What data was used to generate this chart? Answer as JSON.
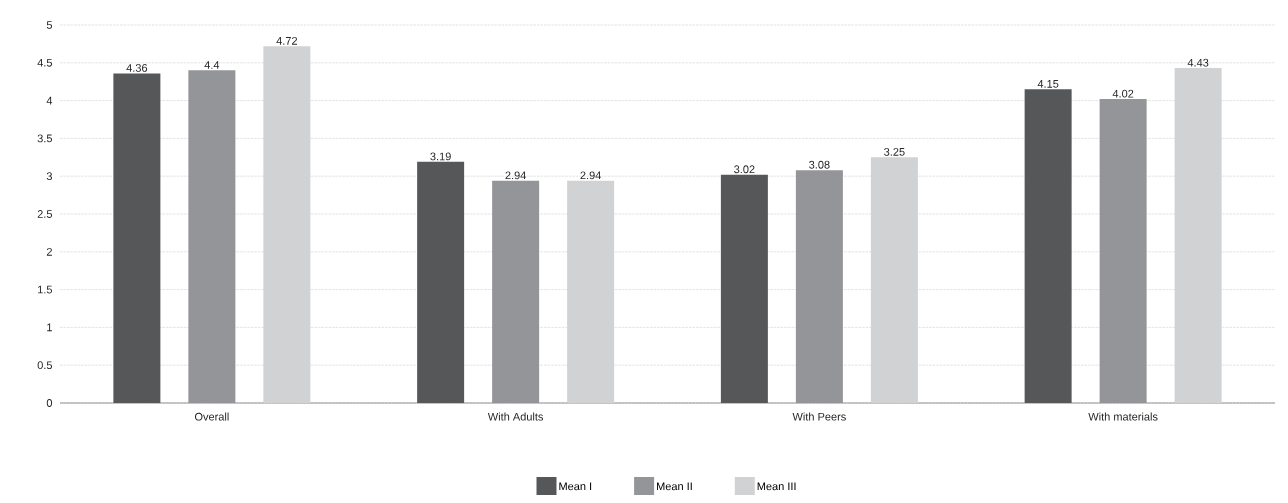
{
  "chart_data": {
    "type": "bar",
    "categories": [
      "Overall",
      "With Adults",
      "With Peers",
      "With materials"
    ],
    "series": [
      {
        "name": "Mean I",
        "color": "#555759",
        "values": [
          4.36,
          3.19,
          3.02,
          4.15
        ]
      },
      {
        "name": "Mean II",
        "color": "#949598",
        "values": [
          4.4,
          2.94,
          3.08,
          4.02
        ]
      },
      {
        "name": "Mean III",
        "color": "#d1d2d4",
        "values": [
          4.72,
          2.94,
          3.25,
          4.43
        ]
      }
    ],
    "ylim": [
      0,
      5
    ],
    "yticks": [
      0,
      0.5,
      1,
      1.5,
      2,
      2.5,
      3,
      3.5,
      4,
      4.5,
      5
    ],
    "grid": "y",
    "legend": "bottom",
    "data_labels": true
  }
}
